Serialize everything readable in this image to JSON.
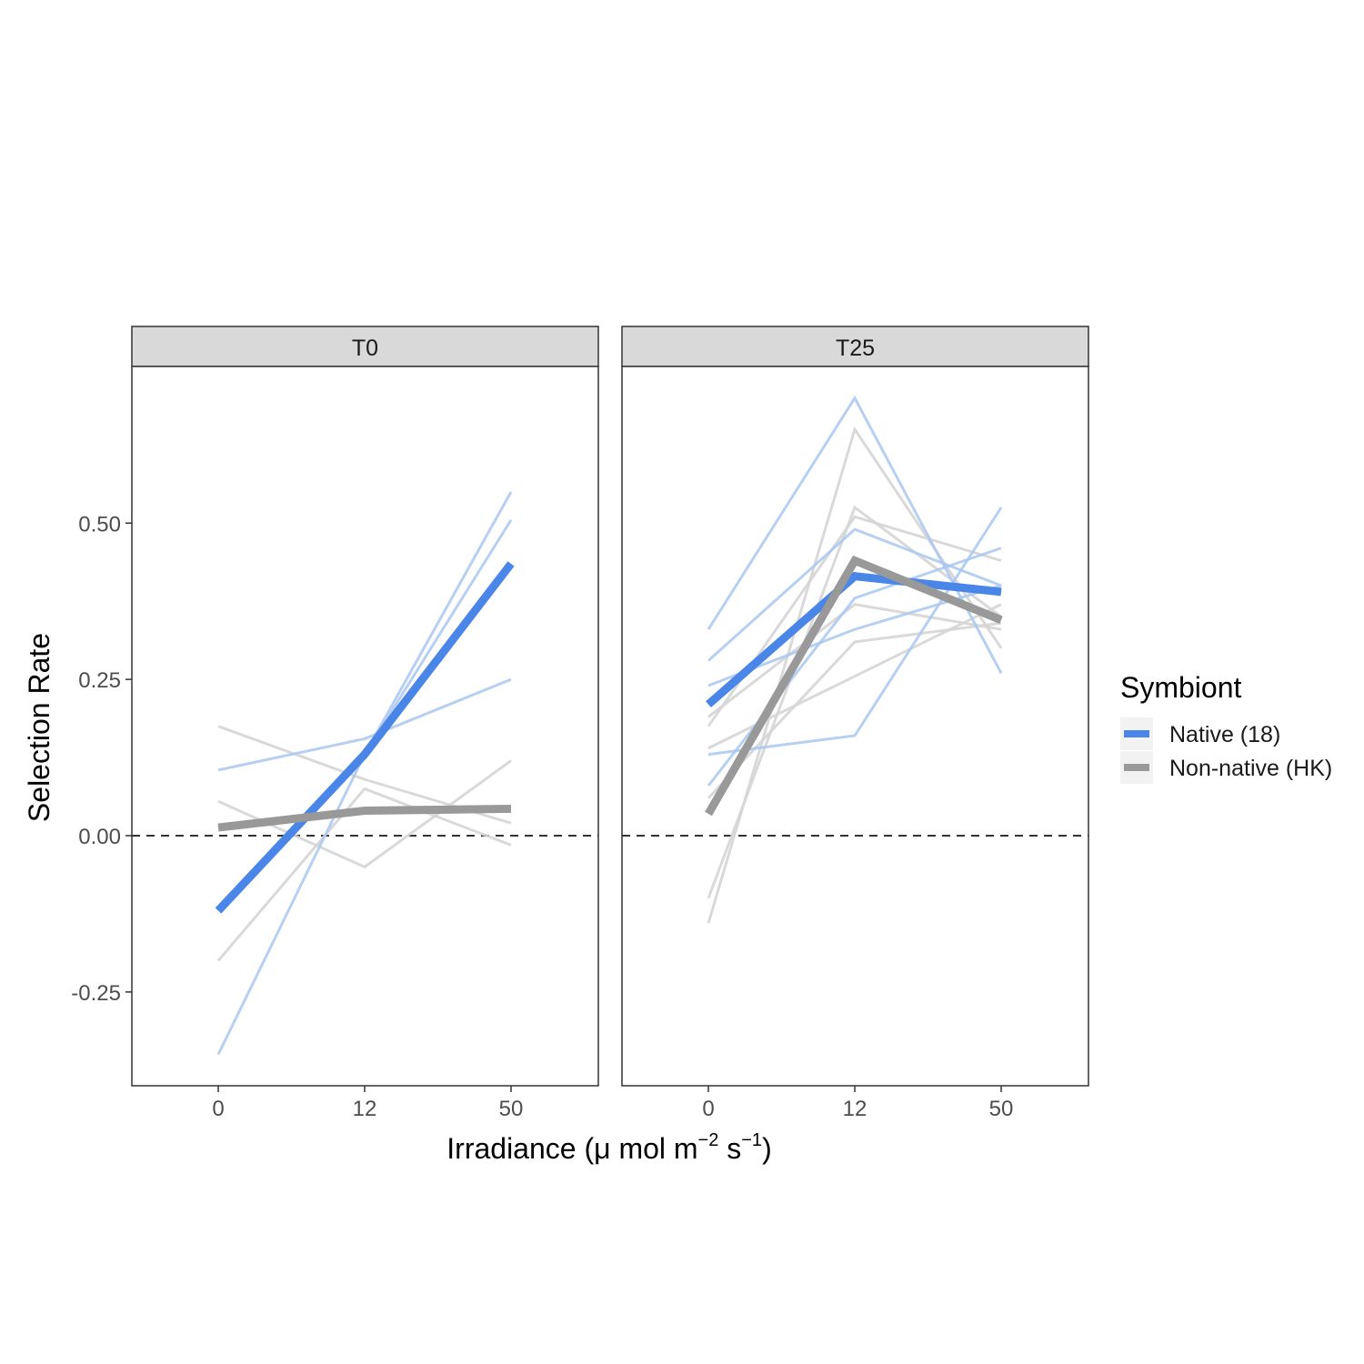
{
  "chart_data": {
    "type": "line",
    "ylabel": "Selection Rate",
    "xlabel": {
      "base": "Irradiance (μ mol m",
      "sup1": "−2",
      "mid": " s",
      "sup2": "−1",
      "end": ")"
    },
    "categories": [
      "0",
      "12",
      "50"
    ],
    "ylim": [
      -0.4,
      0.8
    ],
    "yticks": [
      -0.25,
      0.0,
      0.25,
      0.5
    ],
    "ytick_labels": [
      "-0.25",
      "0.00",
      "0.25",
      "0.50"
    ],
    "reference_line": {
      "y": 0.0,
      "style": "dashed"
    },
    "grid": false,
    "legend": {
      "title": "Symbiont",
      "placement": "right",
      "entries": [
        {
          "name": "Native (18)",
          "color": "#4a86e8"
        },
        {
          "name": "Non-native (HK)",
          "color": "#999999"
        }
      ]
    },
    "colors": {
      "native": "#4a86e8",
      "native_light": "#a9c7f0",
      "nonnative": "#999999",
      "nonnative_light": "#d5d5d5",
      "strip_bg": "#d9d9d9"
    },
    "panels": [
      {
        "name": "T0",
        "mean": {
          "native": [
            -0.12,
            0.13,
            0.435
          ],
          "nonnative": [
            0.013,
            0.04,
            0.043
          ]
        },
        "replicates": {
          "native": [
            [
              -0.35,
              0.13,
              0.55
            ],
            [
              0.105,
              0.155,
              0.25
            ],
            [
              -0.12,
              0.13,
              0.505
            ]
          ],
          "nonnative": [
            [
              0.175,
              0.09,
              0.02
            ],
            [
              0.055,
              -0.05,
              0.12
            ],
            [
              -0.2,
              0.075,
              -0.015
            ]
          ]
        }
      },
      {
        "name": "T25",
        "mean": {
          "native": [
            0.21,
            0.415,
            0.39
          ],
          "nonnative": [
            0.035,
            0.44,
            0.345
          ]
        },
        "replicates": {
          "native": [
            [
              0.33,
              0.7,
              0.26
            ],
            [
              0.28,
              0.49,
              0.4
            ],
            [
              0.13,
              0.16,
              0.525
            ],
            [
              0.08,
              0.38,
              0.46
            ],
            [
              0.24,
              0.33,
              0.4
            ]
          ],
          "nonnative": [
            [
              -0.14,
              0.65,
              0.3
            ],
            [
              -0.1,
              0.525,
              0.35
            ],
            [
              0.175,
              0.51,
              0.44
            ],
            [
              0.14,
              0.255,
              0.37
            ],
            [
              0.06,
              0.31,
              0.34
            ],
            [
              0.19,
              0.37,
              0.33
            ]
          ]
        }
      }
    ]
  },
  "caption_fragment": "..."
}
